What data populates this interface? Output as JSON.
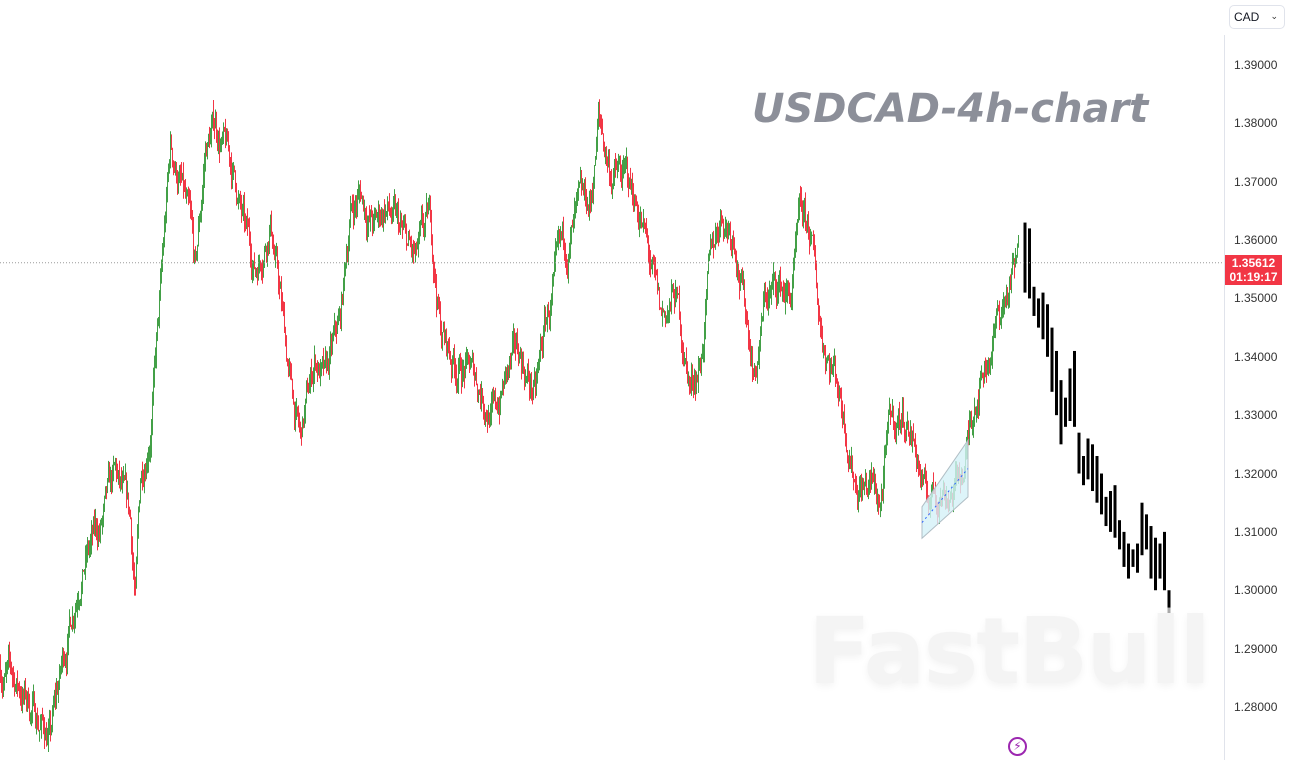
{
  "chart_title": "USDCAD-4h-chart",
  "watermark": "FastBull",
  "symbol_select": {
    "value": "CAD"
  },
  "last_price": {
    "price": "1.35612",
    "countdown": "01:19:17",
    "value": 1.35612
  },
  "colors": {
    "up": "#43a047",
    "down": "#f23645",
    "projection": "#000000",
    "price_label_bg": "#f23645",
    "channel_fill": "#d4f1f7",
    "icon": "#9c27b0"
  },
  "icons": {
    "bottom": "lightning-icon",
    "dropdown": "chevron-down-icon"
  },
  "chart_data": {
    "type": "candlestick",
    "title": "USDCAD-4h-chart",
    "ylim": [
      1.272,
      1.399
    ],
    "y_ticks": [
      "1.39000",
      "1.38000",
      "1.37000",
      "1.36000",
      "1.35000",
      "1.34000",
      "1.33000",
      "1.32000",
      "1.31000",
      "1.30000",
      "1.29000",
      "1.28000"
    ],
    "grid": false,
    "price_path": {
      "bar": [
        0,
        20,
        50,
        65,
        80,
        100,
        115,
        130,
        135,
        140,
        150,
        160,
        170,
        180,
        190,
        195,
        205,
        215,
        225,
        235,
        245,
        255,
        270,
        280,
        290,
        300,
        315,
        325,
        340,
        350,
        360,
        375,
        385,
        400,
        415,
        430,
        440,
        450,
        465,
        480,
        495,
        505,
        520,
        535,
        545,
        560,
        575,
        590,
        598,
        610,
        625,
        640,
        650,
        660,
        675,
        690,
        700,
        710,
        720,
        735,
        745,
        755,
        765,
        780,
        790,
        800,
        810,
        820,
        835,
        845,
        855,
        870,
        880,
        890,
        905,
        915,
        925,
        940,
        955,
        965,
        975,
        985,
        995,
        1005,
        1018
      ],
      "price": [
        1.287,
        1.283,
        1.275,
        1.29,
        1.305,
        1.31,
        1.318,
        1.31,
        1.298,
        1.318,
        1.33,
        1.35,
        1.375,
        1.37,
        1.36,
        1.352,
        1.375,
        1.38,
        1.375,
        1.37,
        1.36,
        1.355,
        1.365,
        1.35,
        1.335,
        1.325,
        1.34,
        1.335,
        1.345,
        1.365,
        1.368,
        1.362,
        1.366,
        1.36,
        1.355,
        1.362,
        1.345,
        1.34,
        1.338,
        1.335,
        1.33,
        1.336,
        1.34,
        1.333,
        1.345,
        1.355,
        1.362,
        1.365,
        1.38,
        1.372,
        1.37,
        1.365,
        1.355,
        1.345,
        1.35,
        1.335,
        1.34,
        1.355,
        1.365,
        1.362,
        1.348,
        1.338,
        1.35,
        1.352,
        1.35,
        1.362,
        1.36,
        1.345,
        1.338,
        1.33,
        1.32,
        1.318,
        1.315,
        1.328,
        1.33,
        1.325,
        1.315,
        1.318,
        1.318,
        1.322,
        1.335,
        1.34,
        1.345,
        1.35,
        1.356
      ]
    },
    "projection_bars": [
      [
        1.363,
        1.351
      ],
      [
        1.362,
        1.35
      ],
      [
        1.352,
        1.347
      ],
      [
        1.35,
        1.345
      ],
      [
        1.351,
        1.343
      ],
      [
        1.349,
        1.34
      ],
      [
        1.345,
        1.334
      ],
      [
        1.341,
        1.33
      ],
      [
        1.336,
        1.325
      ],
      [
        1.333,
        1.328
      ],
      [
        1.338,
        1.329
      ],
      [
        1.341,
        1.328
      ],
      [
        1.327,
        1.32
      ],
      [
        1.323,
        1.318
      ],
      [
        1.326,
        1.319
      ],
      [
        1.325,
        1.317
      ],
      [
        1.323,
        1.315
      ],
      [
        1.32,
        1.313
      ],
      [
        1.316,
        1.311
      ],
      [
        1.317,
        1.31
      ],
      [
        1.318,
        1.309
      ],
      [
        1.312,
        1.307
      ],
      [
        1.31,
        1.304
      ],
      [
        1.308,
        1.302
      ],
      [
        1.307,
        1.304
      ],
      [
        1.308,
        1.303
      ],
      [
        1.315,
        1.306
      ],
      [
        1.313,
        1.307
      ],
      [
        1.311,
        1.302
      ],
      [
        1.309,
        1.3
      ],
      [
        1.308,
        1.302
      ],
      [
        1.31,
        1.3
      ],
      [
        1.3,
        1.2922
      ]
    ],
    "pattern_channel": {
      "bars": [
        922,
        968
      ],
      "upper": [
        1.3143,
        1.3257
      ],
      "lower": [
        1.3089,
        1.316
      ]
    }
  }
}
